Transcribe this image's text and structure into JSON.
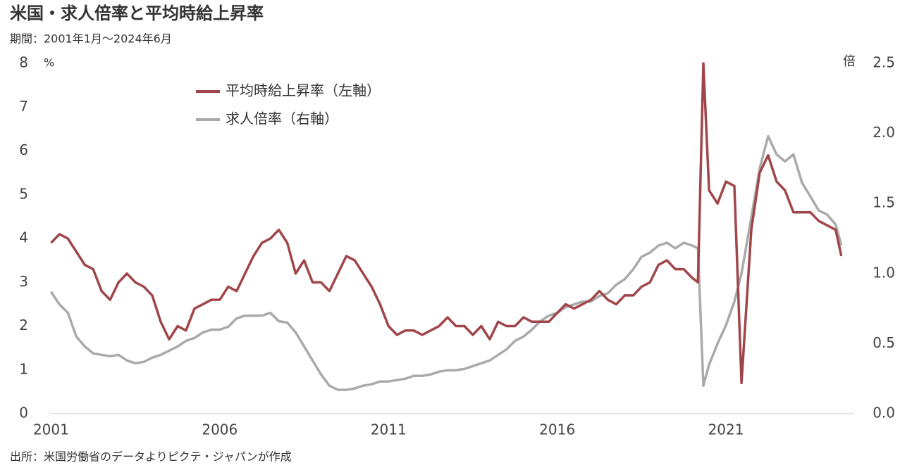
{
  "chart_data": {
    "type": "line",
    "title": "米国・求人倍率と平均時給上昇率",
    "subtitle": "期間：2001年1月～2024年6月",
    "source": "出所：米国労働省のデータよりピクテ・ジャパンが作成",
    "ylabel": "%",
    "y2label": "倍",
    "x": [
      2001,
      2001.25,
      2001.5,
      2001.75,
      2002,
      2002.25,
      2002.5,
      2002.75,
      2003,
      2003.25,
      2003.5,
      2003.75,
      2004,
      2004.25,
      2004.5,
      2004.75,
      2005,
      2005.25,
      2005.5,
      2005.75,
      2006,
      2006.25,
      2006.5,
      2006.75,
      2007,
      2007.25,
      2007.5,
      2007.75,
      2008,
      2008.25,
      2008.5,
      2008.75,
      2009,
      2009.25,
      2009.5,
      2009.75,
      2010,
      2010.25,
      2010.5,
      2010.75,
      2011,
      2011.25,
      2011.5,
      2011.75,
      2012,
      2012.25,
      2012.5,
      2012.75,
      2013,
      2013.25,
      2013.5,
      2013.75,
      2014,
      2014.25,
      2014.5,
      2014.75,
      2015,
      2015.25,
      2015.5,
      2015.75,
      2016,
      2016.25,
      2016.5,
      2016.75,
      2017,
      2017.25,
      2017.5,
      2017.75,
      2018,
      2018.25,
      2018.5,
      2018.75,
      2019,
      2019.25,
      2019.5,
      2019.75,
      2020,
      2020.17,
      2020.33,
      2020.5,
      2020.75,
      2021,
      2021.25,
      2021.46,
      2021.75,
      2022,
      2022.25,
      2022.5,
      2022.75,
      2023,
      2023.25,
      2023.5,
      2023.75,
      2024,
      2024.25,
      2024.42
    ],
    "series": [
      {
        "name": "平均時給上昇率（左軸）",
        "color": "#a0464b",
        "values": [
          3.9,
          4.1,
          4.0,
          3.7,
          3.4,
          3.3,
          2.8,
          2.6,
          3.0,
          3.2,
          3.0,
          2.9,
          2.7,
          2.1,
          1.7,
          2.0,
          1.9,
          2.4,
          2.5,
          2.6,
          2.6,
          2.9,
          2.8,
          3.2,
          3.6,
          3.9,
          4.0,
          4.2,
          3.9,
          3.2,
          3.5,
          3.0,
          3.0,
          2.8,
          3.2,
          3.6,
          3.5,
          3.2,
          2.9,
          2.5,
          2.0,
          1.8,
          1.9,
          1.9,
          1.8,
          1.9,
          2.0,
          2.2,
          2.0,
          2.0,
          1.8,
          2.0,
          1.7,
          2.1,
          2.0,
          2.0,
          2.2,
          2.1,
          2.1,
          2.1,
          2.3,
          2.5,
          2.4,
          2.5,
          2.6,
          2.8,
          2.6,
          2.5,
          2.7,
          2.7,
          2.9,
          3.0,
          3.4,
          3.5,
          3.3,
          3.3,
          3.1,
          3.0,
          8.0,
          5.1,
          4.8,
          5.3,
          5.2,
          0.7,
          4.2,
          5.5,
          5.9,
          5.3,
          5.1,
          4.6,
          4.6,
          4.6,
          4.4,
          4.3,
          4.2,
          3.6
        ]
      },
      {
        "name": "求人倍率（右軸）",
        "color": "#aaaaaa",
        "axis": "y2",
        "values": [
          0.87,
          0.78,
          0.72,
          0.55,
          0.48,
          0.43,
          0.42,
          0.41,
          0.42,
          0.38,
          0.36,
          0.37,
          0.4,
          0.42,
          0.45,
          0.48,
          0.52,
          0.54,
          0.58,
          0.6,
          0.6,
          0.62,
          0.68,
          0.7,
          0.7,
          0.7,
          0.72,
          0.66,
          0.65,
          0.58,
          0.48,
          0.38,
          0.28,
          0.2,
          0.17,
          0.17,
          0.18,
          0.2,
          0.21,
          0.23,
          0.23,
          0.24,
          0.25,
          0.27,
          0.27,
          0.28,
          0.3,
          0.31,
          0.31,
          0.32,
          0.34,
          0.36,
          0.38,
          0.42,
          0.46,
          0.52,
          0.55,
          0.6,
          0.66,
          0.7,
          0.72,
          0.76,
          0.78,
          0.8,
          0.8,
          0.84,
          0.86,
          0.92,
          0.96,
          1.03,
          1.12,
          1.15,
          1.2,
          1.22,
          1.18,
          1.22,
          1.2,
          1.18,
          0.2,
          0.35,
          0.5,
          0.63,
          0.8,
          1.0,
          1.4,
          1.75,
          1.98,
          1.85,
          1.8,
          1.85,
          1.65,
          1.55,
          1.45,
          1.42,
          1.35,
          1.2
        ]
      }
    ],
    "xlim": [
      2000.95,
      2024.8
    ],
    "xticks": [
      2001,
      2006,
      2011,
      2016,
      2021
    ],
    "ylim": [
      0,
      8
    ],
    "yticks": [
      0,
      1,
      2,
      3,
      4,
      5,
      6,
      7,
      8
    ],
    "y2lim": [
      0,
      2.5
    ],
    "y2ticks": [
      {
        "value": 0,
        "label": "0.0"
      },
      0.5,
      {
        "value": 1,
        "label": "1.0"
      },
      1.5,
      {
        "value": 2,
        "label": "2.0"
      },
      2.5
    ]
  }
}
